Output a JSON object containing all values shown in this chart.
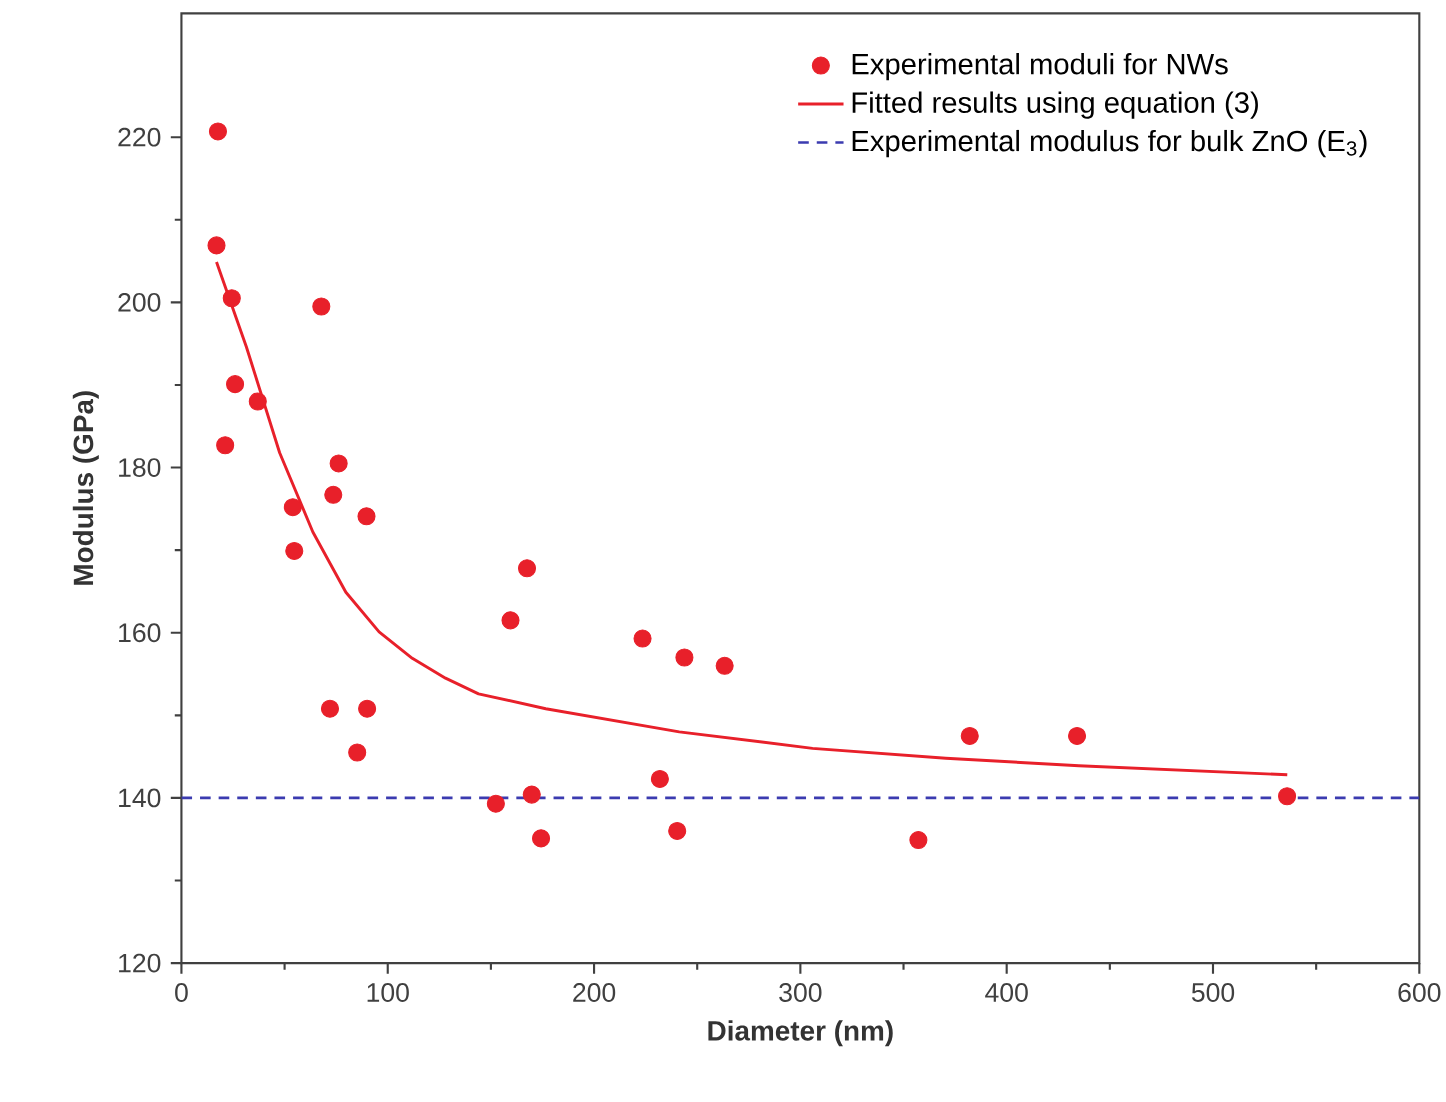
{
  "chart_data": {
    "type": "scatter",
    "xlabel": "Diameter (nm)",
    "ylabel": "Modulus (GPa)",
    "xlim": [
      0,
      600
    ],
    "ylim": [
      120,
      235
    ],
    "xticks": [
      0,
      100,
      200,
      300,
      400,
      500,
      600
    ],
    "yticks": [
      120,
      140,
      160,
      180,
      200,
      220
    ],
    "grid": false,
    "legend": "top right",
    "series": [
      {
        "name": "Experimental moduli for NWs",
        "marker": "circle",
        "color": "#e8202a",
        "x": [
          17.7,
          17,
          24.4,
          26,
          21.2,
          37,
          54,
          54.7,
          67.8,
          76.2,
          73.6,
          89.7,
          72,
          90,
          85.2,
          152.4,
          169.8,
          174.3,
          159.5,
          167.5,
          223.5,
          243.8,
          263.3,
          231.9,
          240.3,
          357.2,
          382.1,
          434.1,
          535.9
        ],
        "values": [
          220.7,
          206.9,
          200.5,
          190.1,
          182.7,
          188,
          175.2,
          169.9,
          199.5,
          180.5,
          176.7,
          174.1,
          150.8,
          150.8,
          145.5,
          139.3,
          140.4,
          135.1,
          161.5,
          167.8,
          159.3,
          157.0,
          156.0,
          142.3,
          136.0,
          134.9,
          147.5,
          147.5,
          140.2
        ]
      },
      {
        "name": "Fitted results using equation (3)",
        "type": "line",
        "line_style": "solid",
        "marker": "none",
        "color": "#e8202a",
        "x": [
          17,
          31.5,
          47.6,
          63.7,
          79.7,
          95.8,
          111.9,
          128,
          144,
          176.6,
          241.3,
          305.9,
          370.5,
          435,
          536
        ],
        "values": [
          204.9,
          194.6,
          181.8,
          172.2,
          164.9,
          160.1,
          156.9,
          154.5,
          152.6,
          150.8,
          148.0,
          146.0,
          144.8,
          143.9,
          142.8
        ]
      }
    ],
    "ref_lines": [
      {
        "axis": "y",
        "value": 140,
        "label": "Experimental modulus for bulk ZnO (E$_{3}$)",
        "color": "#3b3bb0",
        "line_style": "dashed"
      }
    ]
  }
}
